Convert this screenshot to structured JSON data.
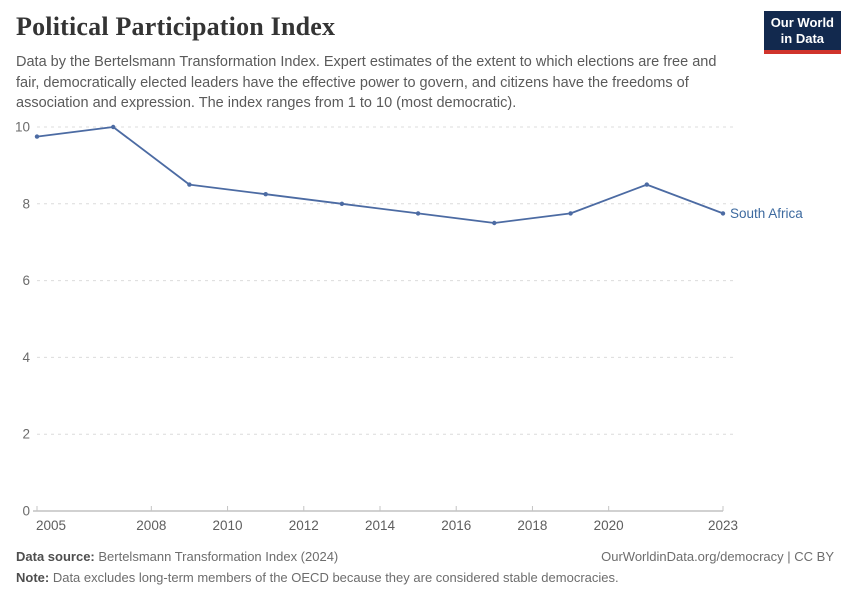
{
  "header": {
    "title": "Political Participation Index",
    "subtitle_lines": [
      "Data by the Bertelsmann Transformation Index. Expert estimates of the extent to which elections are free and",
      "fair, democratically elected leaders have the effective power to govern, and citizens have the freedoms of",
      "association and expression. The index ranges from 1 to 10 (most democratic)."
    ],
    "logo_line1": "Our World",
    "logo_line2": "in Data"
  },
  "chart_data": {
    "type": "line",
    "title": "Political Participation Index",
    "xlabel": "",
    "ylabel": "",
    "xlim": [
      2005,
      2023
    ],
    "ylim": [
      0,
      10
    ],
    "x_ticks": [
      2005,
      2008,
      2010,
      2012,
      2014,
      2016,
      2018,
      2020,
      2023
    ],
    "y_ticks": [
      0,
      2,
      4,
      6,
      8,
      10
    ],
    "grid": "horizontal-dashed",
    "legend_position": "end-of-line-label",
    "series": [
      {
        "name": "South Africa",
        "x": [
          2005,
          2007,
          2009,
          2011,
          2013,
          2015,
          2017,
          2019,
          2021,
          2023
        ],
        "values": [
          9.75,
          10,
          8.5,
          8.25,
          8,
          7.75,
          7.5,
          7.75,
          8.5,
          7.75
        ]
      }
    ],
    "colors": {
      "line": "#4c6ba3",
      "entity_label": "#3d6a9f",
      "grid": "#dcdcdc",
      "axis": "#a3a3a3",
      "tick": "#c4c4c4"
    }
  },
  "footer": {
    "source_label": "Data source:",
    "source_text": " Bertelsmann Transformation Index (2024)",
    "rights": "OurWorldinData.org/democracy | CC BY",
    "note_label": "Note:",
    "note_text": " Data excludes long-term members of the OECD because they are considered stable democracies."
  }
}
